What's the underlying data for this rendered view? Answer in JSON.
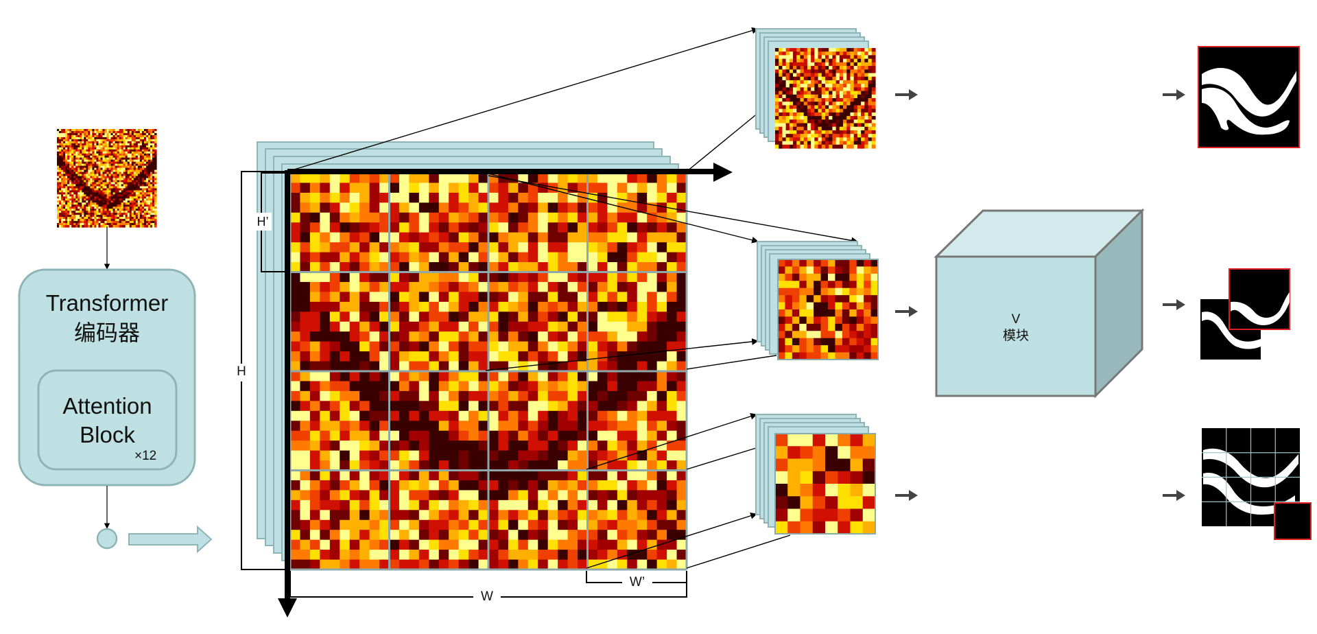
{
  "encoder": {
    "title_line1": "Transformer",
    "title_line2": "编码器",
    "block_line1": "Attention",
    "block_line2": "Block",
    "repeat": "×12"
  },
  "dimensions": {
    "H": "H",
    "W": "W",
    "H_prime": "H’",
    "W_prime": "W’"
  },
  "v_module": {
    "line1": "V",
    "line2": "模块"
  },
  "colors": {
    "panel_fill": "#bfe0e3",
    "panel_stroke": "#8fb4b8",
    "cube_front": "#bfe0e3",
    "cube_top": "#d2eaec",
    "cube_side": "#98b9bc",
    "cube_stroke": "#777777",
    "mask_border": "#e02020",
    "heatmap_palette": [
      "#3a0000",
      "#6e0000",
      "#a00000",
      "#d01000",
      "#f04000",
      "#ff7a00",
      "#ffb000",
      "#ffe000",
      "#ffff90"
    ]
  }
}
